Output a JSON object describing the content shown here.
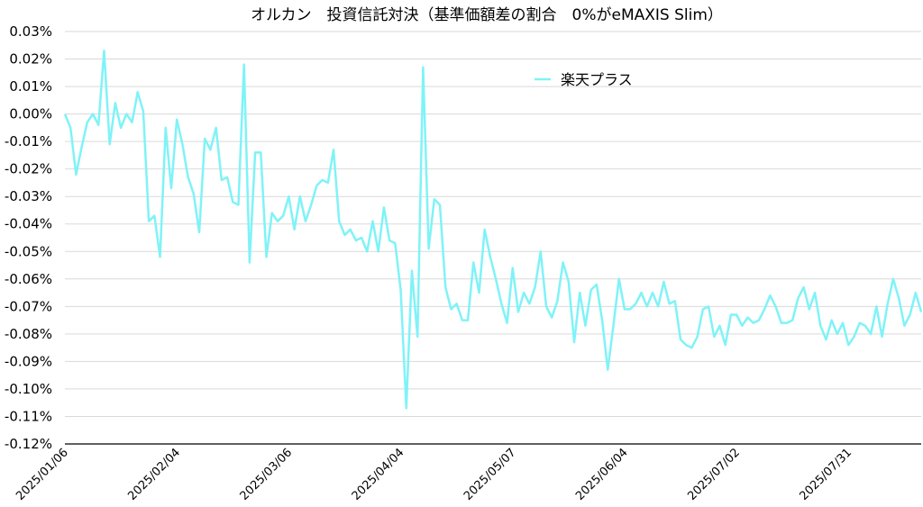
{
  "chart_data": {
    "type": "line",
    "title": "オルカン　投資信託対決（基準価額差の割合　0%がeMAXIS Slim）",
    "xlabel": "",
    "ylabel": "",
    "ylim": [
      -0.12,
      0.03
    ],
    "yticks": [
      0.03,
      0.02,
      0.01,
      0.0,
      -0.01,
      -0.02,
      -0.03,
      -0.04,
      -0.05,
      -0.06,
      -0.07,
      -0.08,
      -0.09,
      -0.1,
      -0.11,
      -0.12
    ],
    "ytick_labels": [
      "0.03%",
      "0.02%",
      "0.01%",
      "0.00%",
      "-0.01%",
      "-0.02%",
      "-0.03%",
      "-0.04%",
      "-0.05%",
      "-0.06%",
      "-0.07%",
      "-0.08%",
      "-0.09%",
      "-0.10%",
      "-0.11%",
      "-0.12%"
    ],
    "xtick_labels": [
      "2025/01/06",
      "2025/02/04",
      "2025/03/06",
      "2025/04/04",
      "2025/05/07",
      "2025/06/04",
      "2025/07/02",
      "2025/07/31"
    ],
    "xtick_indices": [
      0,
      20,
      40,
      60,
      80,
      100,
      120,
      140
    ],
    "grid": true,
    "legend_placement": "upper-center",
    "series": [
      {
        "name": "楽天プラス",
        "color": "#7ff3f7",
        "values": [
          0.0,
          -0.005,
          -0.022,
          -0.012,
          -0.003,
          0.0,
          -0.004,
          0.023,
          -0.011,
          0.004,
          -0.005,
          0.0,
          -0.003,
          0.008,
          0.001,
          -0.039,
          -0.037,
          -0.052,
          -0.005,
          -0.027,
          -0.002,
          -0.011,
          -0.023,
          -0.029,
          -0.043,
          -0.009,
          -0.013,
          -0.005,
          -0.024,
          -0.023,
          -0.032,
          -0.033,
          0.018,
          -0.054,
          -0.014,
          -0.014,
          -0.052,
          -0.036,
          -0.039,
          -0.037,
          -0.03,
          -0.042,
          -0.03,
          -0.039,
          -0.033,
          -0.026,
          -0.024,
          -0.025,
          -0.013,
          -0.039,
          -0.044,
          -0.042,
          -0.046,
          -0.045,
          -0.05,
          -0.039,
          -0.05,
          -0.034,
          -0.046,
          -0.047,
          -0.064,
          -0.107,
          -0.057,
          -0.081,
          0.017,
          -0.049,
          -0.031,
          -0.033,
          -0.063,
          -0.071,
          -0.069,
          -0.075,
          -0.075,
          -0.054,
          -0.065,
          -0.042,
          -0.052,
          -0.06,
          -0.069,
          -0.076,
          -0.056,
          -0.072,
          -0.065,
          -0.069,
          -0.063,
          -0.05,
          -0.07,
          -0.074,
          -0.068,
          -0.054,
          -0.061,
          -0.083,
          -0.065,
          -0.077,
          -0.064,
          -0.062,
          -0.075,
          -0.093,
          -0.077,
          -0.06,
          -0.071,
          -0.071,
          -0.069,
          -0.065,
          -0.07,
          -0.065,
          -0.07,
          -0.061,
          -0.069,
          -0.068,
          -0.082,
          -0.084,
          -0.085,
          -0.081,
          -0.071,
          -0.07,
          -0.081,
          -0.077,
          -0.084,
          -0.073,
          -0.073,
          -0.077,
          -0.074,
          -0.076,
          -0.075,
          -0.071,
          -0.066,
          -0.07,
          -0.076,
          -0.076,
          -0.075,
          -0.067,
          -0.063,
          -0.071,
          -0.065,
          -0.077,
          -0.082,
          -0.075,
          -0.08,
          -0.076,
          -0.084,
          -0.081,
          -0.076,
          -0.077,
          -0.08,
          -0.07,
          -0.081,
          -0.069,
          -0.06,
          -0.067,
          -0.077,
          -0.073,
          -0.065,
          -0.072
        ]
      }
    ]
  }
}
